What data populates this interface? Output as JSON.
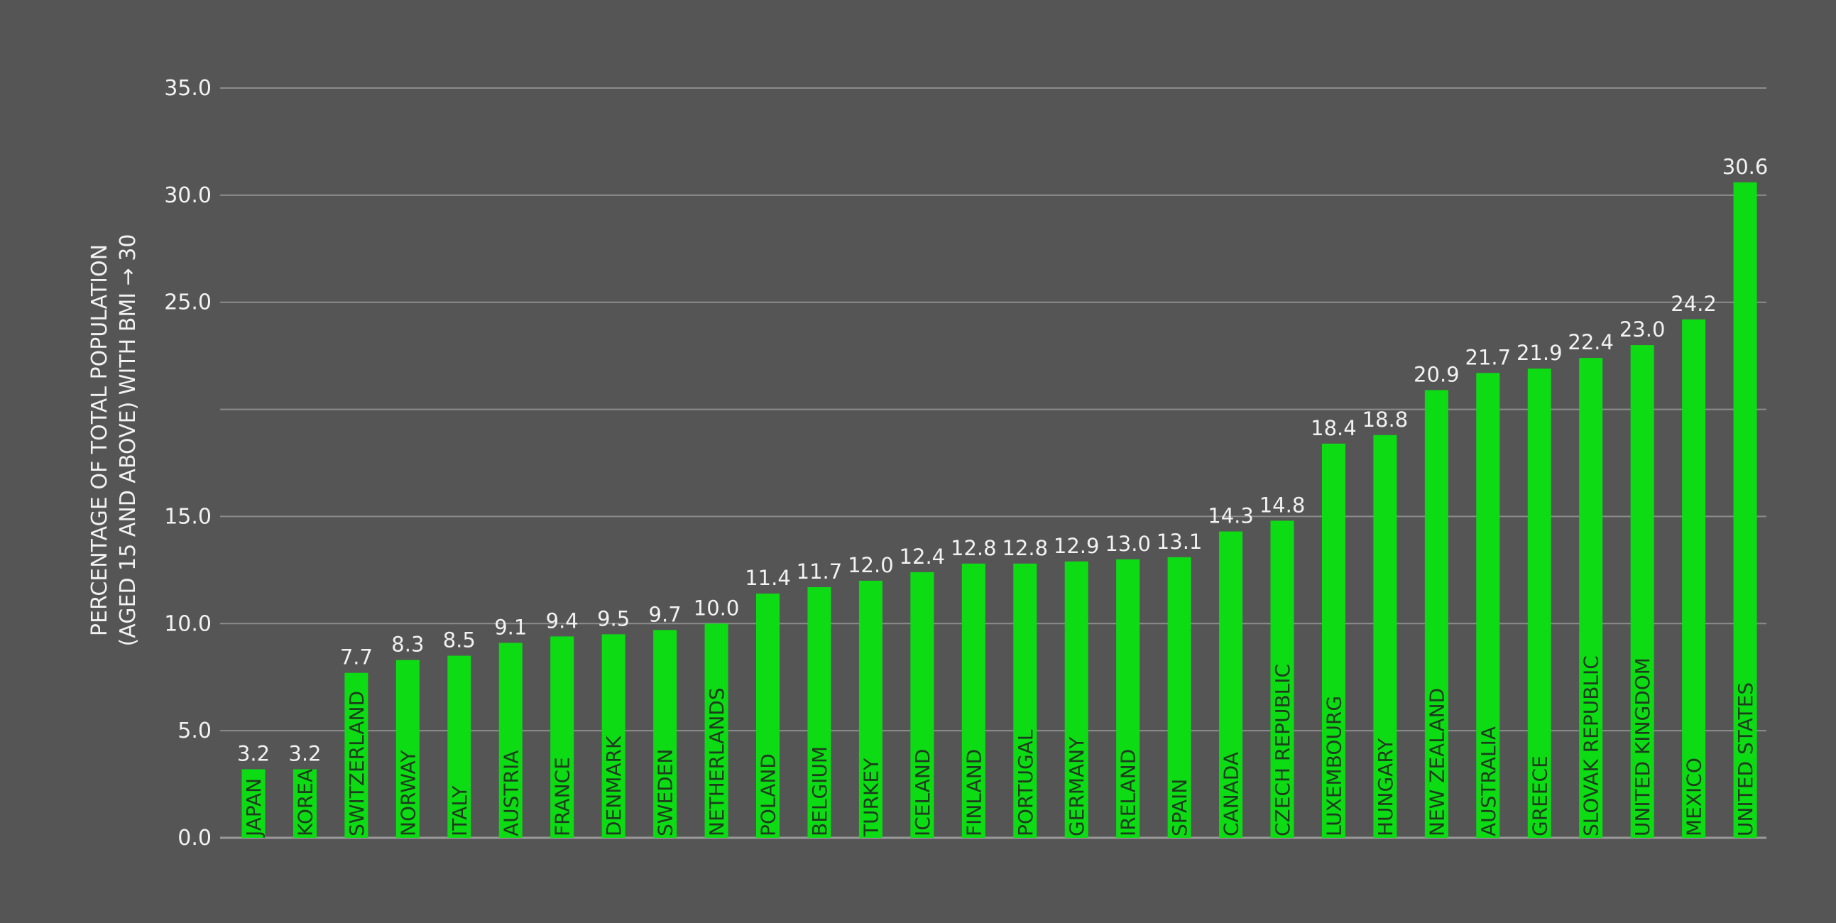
{
  "colors": {
    "background": "#555555",
    "bar": "#0ddc14",
    "grid": "#8c8c8c",
    "text": "#f2f2f2",
    "bar_label": "#1f3a1f"
  },
  "chart_data": {
    "type": "bar",
    "title": "",
    "xlabel": "",
    "ylabel_lines": [
      "PERCENTAGE OF TOTAL POPULATION",
      "(AGED 15 AND ABOVE) WITH BMI → 30"
    ],
    "ylim": [
      0,
      35
    ],
    "yticks": [
      0,
      5,
      10,
      15,
      25,
      30,
      35
    ],
    "ytick_labels": [
      "0.0",
      "5.0",
      "10.0",
      "15.0",
      "25.0",
      "30.0",
      "35.0"
    ],
    "gridlines": [
      0,
      5,
      10,
      15,
      20,
      25,
      30,
      35
    ],
    "grid": true,
    "legend": "none",
    "categories": [
      "JAPAN",
      "KOREA",
      "SWITZERLAND",
      "NORWAY",
      "ITALY",
      "AUSTRIA",
      "FRANCE",
      "DENMARK",
      "SWEDEN",
      "NETHERLANDS",
      "POLAND",
      "BELGIUM",
      "TURKEY",
      "ICELAND",
      "FINLAND",
      "PORTUGAL",
      "GERMANY",
      "IRELAND",
      "SPAIN",
      "CANADA",
      "CZECH REPUBLIC",
      "LUXEMBOURG",
      "HUNGARY",
      "NEW ZEALAND",
      "AUSTRALIA",
      "GREECE",
      "SLOVAK REPUBLIC",
      "UNITED KINGDOM",
      "MEXICO",
      "UNITED STATES"
    ],
    "values": [
      3.2,
      3.2,
      7.7,
      8.3,
      8.5,
      9.1,
      9.4,
      9.5,
      9.7,
      10.0,
      11.4,
      11.7,
      12.0,
      12.4,
      12.8,
      12.8,
      12.9,
      13.0,
      13.1,
      14.3,
      14.8,
      18.4,
      18.8,
      20.9,
      21.7,
      21.9,
      22.4,
      23.0,
      24.2,
      30.6
    ],
    "value_labels": [
      "3.2",
      "3.2",
      "7.7",
      "8.3",
      "8.5",
      "9.1",
      "9.4",
      "9.5",
      "9.7",
      "10.0",
      "11.4",
      "11.7",
      "12.0",
      "12.4",
      "12.8",
      "12.8",
      "12.9",
      "13.0",
      "13.1",
      "14.3",
      "14.8",
      "18.4",
      "18.8",
      "20.9",
      "21.7",
      "21.9",
      "22.4",
      "23.0",
      "24.2",
      "30.6"
    ]
  }
}
